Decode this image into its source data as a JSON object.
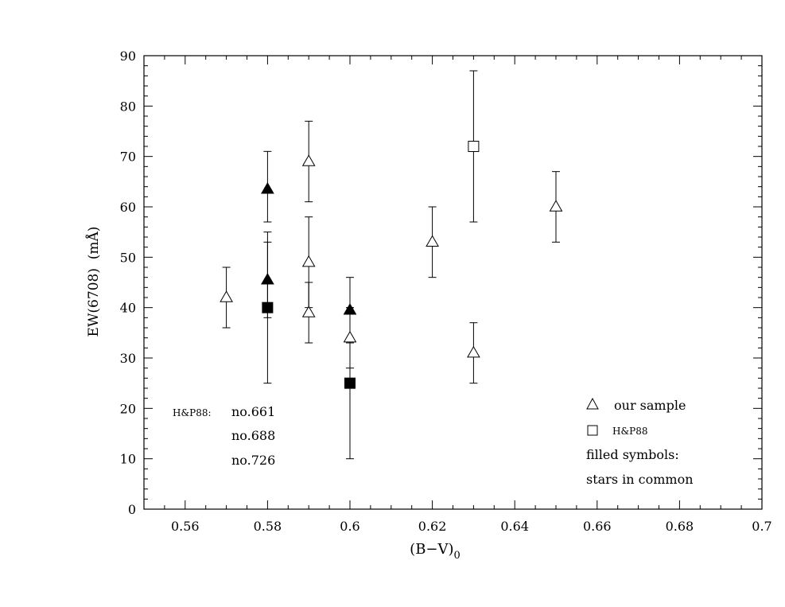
{
  "chart_data": {
    "type": "scatter",
    "xlabel": "(B−V)",
    "xlabel_subscript": "0",
    "ylabel": "EW(6708)  (mÅ)",
    "xlim": [
      0.55,
      0.7
    ],
    "ylim": [
      0,
      90
    ],
    "x_ticks": [
      0.56,
      0.58,
      0.6,
      0.62,
      0.64,
      0.66,
      0.68,
      0.7
    ],
    "x_tick_labels": [
      "0.56",
      "0.58",
      "0.6",
      "0.62",
      "0.64",
      "0.66",
      "0.68",
      "0.7"
    ],
    "y_ticks": [
      0,
      10,
      20,
      30,
      40,
      50,
      60,
      70,
      80,
      90
    ],
    "y_tick_labels": [
      "0",
      "10",
      "20",
      "30",
      "40",
      "50",
      "60",
      "70",
      "80",
      "90"
    ],
    "grid": false,
    "series": [
      {
        "name": "our sample",
        "marker": "open-triangle",
        "points": [
          {
            "x": 0.57,
            "y": 42,
            "err_lo": 36,
            "err_hi": 48
          },
          {
            "x": 0.59,
            "y": 69,
            "err_lo": 61,
            "err_hi": 77
          },
          {
            "x": 0.59,
            "y": 49,
            "err_lo": 40,
            "err_hi": 58
          },
          {
            "x": 0.59,
            "y": 39,
            "err_lo": 33,
            "err_hi": 45
          },
          {
            "x": 0.6,
            "y": 34,
            "err_lo": 28,
            "err_hi": 40
          },
          {
            "x": 0.62,
            "y": 53,
            "err_lo": 46,
            "err_hi": 60
          },
          {
            "x": 0.63,
            "y": 31,
            "err_lo": 25,
            "err_hi": 37
          },
          {
            "x": 0.65,
            "y": 60,
            "err_lo": 53,
            "err_hi": 67
          }
        ]
      },
      {
        "name": "our sample (stars in common)",
        "marker": "filled-triangle",
        "points": [
          {
            "x": 0.58,
            "y": 63.5,
            "err_lo": 57,
            "err_hi": 71
          },
          {
            "x": 0.58,
            "y": 45.5,
            "err_lo": 38,
            "err_hi": 53
          },
          {
            "x": 0.6,
            "y": 39.5,
            "err_lo": 33,
            "err_hi": 46
          }
        ]
      },
      {
        "name": "H&P88",
        "marker": "open-square",
        "points": [
          {
            "x": 0.63,
            "y": 72,
            "err_lo": 57,
            "err_hi": 87
          }
        ]
      },
      {
        "name": "H&P88 (stars in common)",
        "marker": "filled-square",
        "points": [
          {
            "x": 0.58,
            "y": 40,
            "err_lo": 25,
            "err_hi": 55
          },
          {
            "x": 0.6,
            "y": 25,
            "err_lo": 10,
            "err_hi": 40
          }
        ]
      }
    ],
    "legend": {
      "position": "bottom-right",
      "entries": [
        "our sample",
        "H&P88"
      ],
      "notes": [
        "filled symbols:",
        "stars in common"
      ]
    },
    "annotation": {
      "label": "H&P88:",
      "lines": [
        "no.661",
        "no.688",
        "no.726"
      ]
    }
  }
}
